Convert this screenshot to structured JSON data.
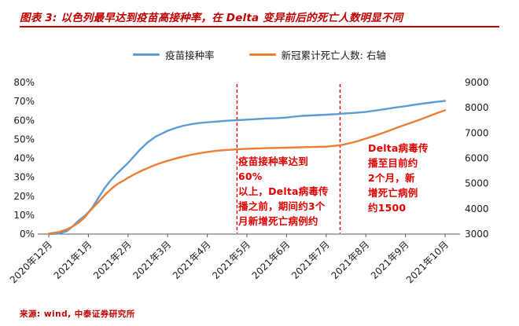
{
  "title": "图表 3: 以色列最早达到疫苗高接种率，在 Delta 变异前后的死亡人数明显不同",
  "source": "来源: wind, 中泰证券研究所",
  "colors": {
    "red_dark": "#C00000",
    "red_bright": "#E00000",
    "blue": "#5B9BD5",
    "orange": "#ED7D31",
    "axis_text": "#1a1a1a"
  },
  "legend": [
    {
      "label": "疫苗接种率",
      "color": "#5B9BD5"
    },
    {
      "label": "新冠累计死亡人数: 右轴",
      "color": "#ED7D31"
    }
  ],
  "annotations": {
    "between_lines": "疫苗接种率达到60%\n以上，Delta病毒传\n播之前，期间约3个\n月新增死亡病例约",
    "after_line": "Delta病毒传\n播至目前约\n2个月，新\n增死亡病例\n约1500"
  },
  "chart_data": {
    "type": "line",
    "title": "以色列最早达到疫苗高接种率，在 Delta 变异前后的死亡人数明显不同",
    "grid": false,
    "legend_position": "top",
    "x_labels": [
      "2020年12月",
      "2021年1月",
      "2021年2月",
      "2021年3月",
      "2021年4月",
      "2021年5月",
      "2021年6月",
      "2021年7月",
      "2021年8月",
      "2021年9月",
      "2021年10月"
    ],
    "left_axis": {
      "label": "疫苗接种率",
      "min": 0,
      "max": 80,
      "tick_values": [
        0,
        10,
        20,
        30,
        40,
        50,
        60,
        70,
        80
      ],
      "tick_labels": [
        "0%",
        "10%",
        "20%",
        "30%",
        "40%",
        "50%",
        "60%",
        "70%",
        "80%"
      ]
    },
    "right_axis": {
      "label": "新冠累计死亡人数",
      "min": 3000,
      "max": 9000,
      "tick_values": [
        3000,
        4000,
        5000,
        6000,
        7000,
        8000,
        9000
      ],
      "tick_labels": [
        "3000",
        "4000",
        "5000",
        "6000",
        "7000",
        "8000",
        "9000"
      ]
    },
    "vlines": [
      {
        "x": 4.75,
        "style": "dashed",
        "color": "#E00000"
      },
      {
        "x": 7.35,
        "style": "dashed",
        "color": "#E00000"
      }
    ],
    "series": [
      {
        "name": "疫苗接种率",
        "axis": "left",
        "color": "#5B9BD5",
        "values_by_month": [
          0,
          12,
          38,
          55,
          59,
          60,
          62,
          63,
          65,
          68,
          70
        ],
        "points": [
          [
            0,
            0
          ],
          [
            0.25,
            0.3
          ],
          [
            0.45,
            1.5
          ],
          [
            0.6,
            4
          ],
          [
            0.75,
            7
          ],
          [
            0.9,
            9.5
          ],
          [
            1,
            11.5
          ],
          [
            1.1,
            14
          ],
          [
            1.25,
            19
          ],
          [
            1.4,
            24
          ],
          [
            1.55,
            28
          ],
          [
            1.7,
            31.5
          ],
          [
            1.85,
            34.5
          ],
          [
            2,
            37.5
          ],
          [
            2.15,
            41
          ],
          [
            2.3,
            44.5
          ],
          [
            2.5,
            48.5
          ],
          [
            2.7,
            51.5
          ],
          [
            2.9,
            53.5
          ],
          [
            3,
            54.5
          ],
          [
            3.2,
            56
          ],
          [
            3.4,
            57.2
          ],
          [
            3.6,
            58
          ],
          [
            3.8,
            58.6
          ],
          [
            4,
            59
          ],
          [
            4.25,
            59.4
          ],
          [
            4.5,
            59.8
          ],
          [
            4.75,
            60.1
          ],
          [
            5,
            60.4
          ],
          [
            5.25,
            60.7
          ],
          [
            5.5,
            61
          ],
          [
            5.75,
            61.2
          ],
          [
            6,
            61.5
          ],
          [
            6.2,
            62
          ],
          [
            6.4,
            62.4
          ],
          [
            6.6,
            62.6
          ],
          [
            6.8,
            62.8
          ],
          [
            7,
            63
          ],
          [
            7.25,
            63.3
          ],
          [
            7.5,
            63.7
          ],
          [
            7.75,
            64
          ],
          [
            8,
            64.5
          ],
          [
            8.25,
            65.2
          ],
          [
            8.5,
            66
          ],
          [
            8.75,
            66.8
          ],
          [
            9,
            67.5
          ],
          [
            9.25,
            68.3
          ],
          [
            9.5,
            69
          ],
          [
            9.75,
            69.7
          ],
          [
            10,
            70.3
          ]
        ]
      },
      {
        "name": "新冠累计死亡人数",
        "axis": "right",
        "color": "#ED7D31",
        "values_by_month": [
          3020,
          3850,
          5230,
          5900,
          6250,
          6375,
          6420,
          6460,
          6780,
          7330,
          7900
        ],
        "points": [
          [
            0,
            3020
          ],
          [
            0.25,
            3080
          ],
          [
            0.45,
            3180
          ],
          [
            0.6,
            3300
          ],
          [
            0.75,
            3450
          ],
          [
            0.9,
            3650
          ],
          [
            1,
            3850
          ],
          [
            1.15,
            4100
          ],
          [
            1.3,
            4350
          ],
          [
            1.45,
            4600
          ],
          [
            1.6,
            4820
          ],
          [
            1.75,
            5000
          ],
          [
            1.9,
            5130
          ],
          [
            2,
            5230
          ],
          [
            2.2,
            5400
          ],
          [
            2.4,
            5550
          ],
          [
            2.6,
            5680
          ],
          [
            2.8,
            5800
          ],
          [
            3,
            5900
          ],
          [
            3.2,
            5990
          ],
          [
            3.4,
            6070
          ],
          [
            3.6,
            6140
          ],
          [
            3.8,
            6200
          ],
          [
            4,
            6250
          ],
          [
            4.25,
            6300
          ],
          [
            4.5,
            6330
          ],
          [
            4.75,
            6355
          ],
          [
            5,
            6375
          ],
          [
            5.25,
            6390
          ],
          [
            5.5,
            6400
          ],
          [
            5.75,
            6410
          ],
          [
            6,
            6420
          ],
          [
            6.25,
            6430
          ],
          [
            6.5,
            6440
          ],
          [
            6.75,
            6450
          ],
          [
            7,
            6460
          ],
          [
            7.2,
            6490
          ],
          [
            7.4,
            6530
          ],
          [
            7.6,
            6600
          ],
          [
            7.8,
            6680
          ],
          [
            8,
            6780
          ],
          [
            8.2,
            6880
          ],
          [
            8.4,
            6990
          ],
          [
            8.6,
            7100
          ],
          [
            8.8,
            7220
          ],
          [
            9,
            7330
          ],
          [
            9.2,
            7440
          ],
          [
            9.4,
            7550
          ],
          [
            9.6,
            7670
          ],
          [
            9.8,
            7790
          ],
          [
            10,
            7900
          ]
        ]
      }
    ]
  }
}
